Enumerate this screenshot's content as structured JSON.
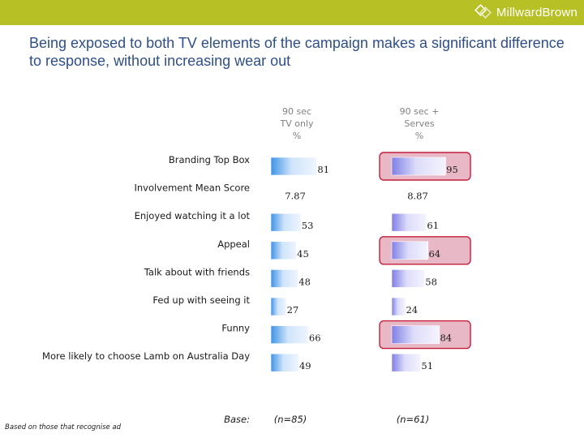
{
  "brand": {
    "logo_text": "MillwardBrown",
    "bar_color": "#b7c025"
  },
  "title": "Being exposed to both TV elements of the campaign makes a significant difference to response, without increasing wear out",
  "footnote": "Based on those that recognise ad",
  "chart_data": {
    "type": "bar",
    "orientation": "horizontal",
    "columns": [
      {
        "header": [
          "90 sec",
          "TV only",
          "%"
        ],
        "base": "(n=85)"
      },
      {
        "header": [
          "90 sec +",
          "Serves",
          "%"
        ],
        "base": "(n=61)"
      }
    ],
    "base_label": "Base:",
    "categories": [
      "Branding Top Box",
      "Involvement Mean Score",
      "Enjoyed watching it a lot",
      "Appeal",
      "Talk about with friends",
      "Fed up with seeing it",
      "Funny",
      "More likely to choose Lamb on Australia Day"
    ],
    "series": [
      {
        "name": "90 sec TV only",
        "values": [
          81,
          7.87,
          53,
          45,
          48,
          27,
          66,
          49
        ],
        "labels": [
          "81",
          "7.87",
          "53",
          "45",
          "48",
          "27",
          "66",
          "49"
        ],
        "bar_shown": [
          true,
          false,
          true,
          true,
          true,
          true,
          true,
          true
        ],
        "color": "#5aa4ea"
      },
      {
        "name": "90 sec + Serves",
        "values": [
          95,
          8.87,
          61,
          64,
          58,
          24,
          84,
          51
        ],
        "labels": [
          "95",
          "8.87",
          "61",
          "64",
          "58",
          "24",
          "84",
          "51"
        ],
        "bar_shown": [
          true,
          false,
          true,
          true,
          true,
          true,
          true,
          true
        ],
        "highlighted": [
          true,
          false,
          false,
          true,
          false,
          false,
          true,
          false
        ],
        "color": "#8f8fe8"
      }
    ],
    "highlight_color": "#e9b8c6",
    "highlight_border": "#c41e3a",
    "value_max": 100
  }
}
